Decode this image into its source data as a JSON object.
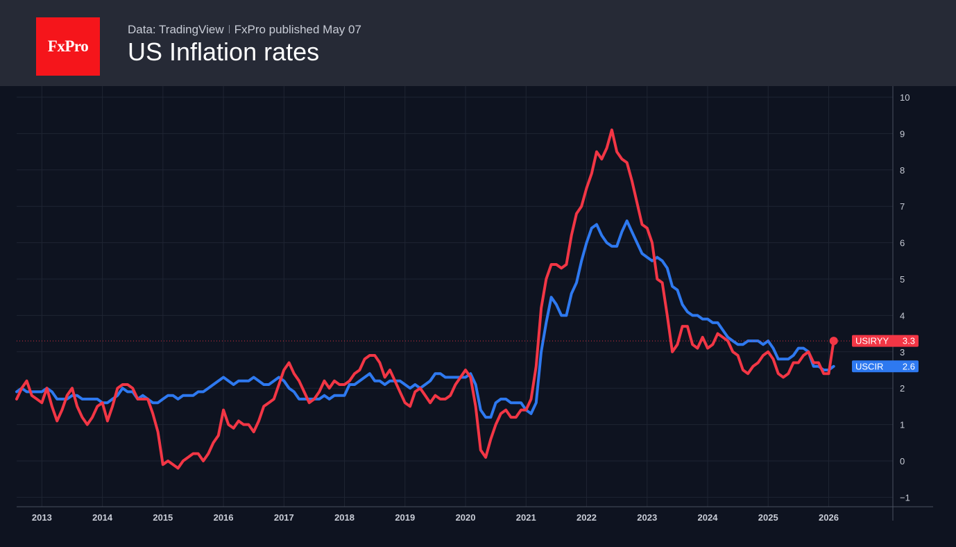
{
  "header": {
    "logo_text": "FxPro",
    "source_text": "Data: TradingView",
    "published_text": "FxPro published May 07",
    "title": "US Inflation rates"
  },
  "colors": {
    "background": "#0e1320",
    "header_background": "#262a36",
    "logo_background": "#f5151b",
    "usiryy": "#f23645",
    "uscir": "#2e79f0",
    "grid": "#1f2533",
    "axis_text": "#c8ccd6"
  },
  "chart_data": {
    "type": "line",
    "title": "US Inflation rates",
    "xlabel": "",
    "ylabel": "",
    "grid": true,
    "x_ticks": [
      "2013",
      "2014",
      "2015",
      "2016",
      "2017",
      "2018",
      "2019",
      "2020",
      "2021",
      "2022",
      "2023",
      "2024",
      "2025",
      "2026"
    ],
    "y_ticks": [
      "10",
      "9",
      "8",
      "7",
      "6",
      "5",
      "4",
      "3",
      "2",
      "1",
      "0",
      "−1"
    ],
    "ylim": [
      -1,
      10
    ],
    "xlim": [
      "2012-08",
      "2026-12"
    ],
    "x_start": "2012-08",
    "x_step": "1 month",
    "series": [
      {
        "name": "USIRYY",
        "last_label": "3.3",
        "color": "#f23645",
        "values": [
          1.7,
          2.0,
          2.2,
          1.8,
          1.7,
          1.6,
          2.0,
          1.5,
          1.1,
          1.4,
          1.8,
          2.0,
          1.5,
          1.2,
          1.0,
          1.2,
          1.5,
          1.6,
          1.1,
          1.5,
          2.0,
          2.1,
          2.1,
          2.0,
          1.7,
          1.7,
          1.7,
          1.3,
          0.8,
          -0.1,
          0.0,
          -0.1,
          -0.2,
          0.0,
          0.1,
          0.2,
          0.2,
          0.0,
          0.2,
          0.5,
          0.7,
          1.4,
          1.0,
          0.9,
          1.1,
          1.0,
          1.0,
          0.8,
          1.1,
          1.5,
          1.6,
          1.7,
          2.1,
          2.5,
          2.7,
          2.4,
          2.2,
          1.9,
          1.6,
          1.7,
          1.9,
          2.2,
          2.0,
          2.2,
          2.1,
          2.1,
          2.2,
          2.4,
          2.5,
          2.8,
          2.9,
          2.9,
          2.7,
          2.3,
          2.5,
          2.2,
          1.9,
          1.6,
          1.5,
          1.9,
          2.0,
          1.8,
          1.6,
          1.8,
          1.7,
          1.7,
          1.8,
          2.1,
          2.3,
          2.5,
          2.3,
          1.5,
          0.3,
          0.1,
          0.6,
          1.0,
          1.3,
          1.4,
          1.2,
          1.2,
          1.4,
          1.4,
          1.7,
          2.6,
          4.2,
          5.0,
          5.4,
          5.4,
          5.3,
          5.4,
          6.2,
          6.8,
          7.0,
          7.5,
          7.9,
          8.5,
          8.3,
          8.6,
          9.1,
          8.5,
          8.3,
          8.2,
          7.7,
          7.1,
          6.5,
          6.4,
          6.0,
          5.0,
          4.9,
          4.0,
          3.0,
          3.2,
          3.7,
          3.7,
          3.2,
          3.1,
          3.4,
          3.1,
          3.2,
          3.5,
          3.4,
          3.3,
          3.0,
          2.9,
          2.5,
          2.4,
          2.6,
          2.7,
          2.9,
          3.0,
          2.8,
          2.4,
          2.3,
          2.4,
          2.7,
          2.7,
          2.9,
          3.0,
          2.7,
          2.7,
          2.4,
          2.4,
          3.3
        ]
      },
      {
        "name": "USCIR",
        "last_label": "2.6",
        "color": "#2e79f0",
        "values": [
          1.9,
          2.0,
          1.9,
          1.9,
          1.9,
          1.9,
          2.0,
          1.9,
          1.7,
          1.7,
          1.7,
          1.8,
          1.8,
          1.7,
          1.7,
          1.7,
          1.7,
          1.6,
          1.6,
          1.7,
          1.8,
          2.0,
          1.9,
          1.9,
          1.7,
          1.8,
          1.7,
          1.6,
          1.6,
          1.7,
          1.8,
          1.8,
          1.7,
          1.8,
          1.8,
          1.8,
          1.9,
          1.9,
          2.0,
          2.1,
          2.2,
          2.3,
          2.2,
          2.1,
          2.2,
          2.2,
          2.2,
          2.3,
          2.2,
          2.1,
          2.1,
          2.2,
          2.3,
          2.2,
          2.0,
          1.9,
          1.7,
          1.7,
          1.7,
          1.7,
          1.7,
          1.8,
          1.7,
          1.8,
          1.8,
          1.8,
          2.1,
          2.1,
          2.2,
          2.3,
          2.4,
          2.2,
          2.2,
          2.1,
          2.2,
          2.2,
          2.2,
          2.1,
          2.0,
          2.1,
          2.0,
          2.1,
          2.2,
          2.4,
          2.4,
          2.3,
          2.3,
          2.3,
          2.3,
          2.3,
          2.4,
          2.1,
          1.4,
          1.2,
          1.2,
          1.6,
          1.7,
          1.7,
          1.6,
          1.6,
          1.6,
          1.4,
          1.3,
          1.6,
          3.0,
          3.8,
          4.5,
          4.3,
          4.0,
          4.0,
          4.6,
          4.9,
          5.5,
          6.0,
          6.4,
          6.5,
          6.2,
          6.0,
          5.9,
          5.9,
          6.3,
          6.6,
          6.3,
          6.0,
          5.7,
          5.6,
          5.5,
          5.6,
          5.5,
          5.3,
          4.8,
          4.7,
          4.3,
          4.1,
          4.0,
          4.0,
          3.9,
          3.9,
          3.8,
          3.8,
          3.6,
          3.4,
          3.3,
          3.2,
          3.2,
          3.3,
          3.3,
          3.3,
          3.2,
          3.3,
          3.1,
          2.8,
          2.8,
          2.8,
          2.9,
          3.1,
          3.1,
          3.0,
          2.6,
          2.6,
          2.5,
          2.5,
          2.6
        ]
      }
    ]
  }
}
